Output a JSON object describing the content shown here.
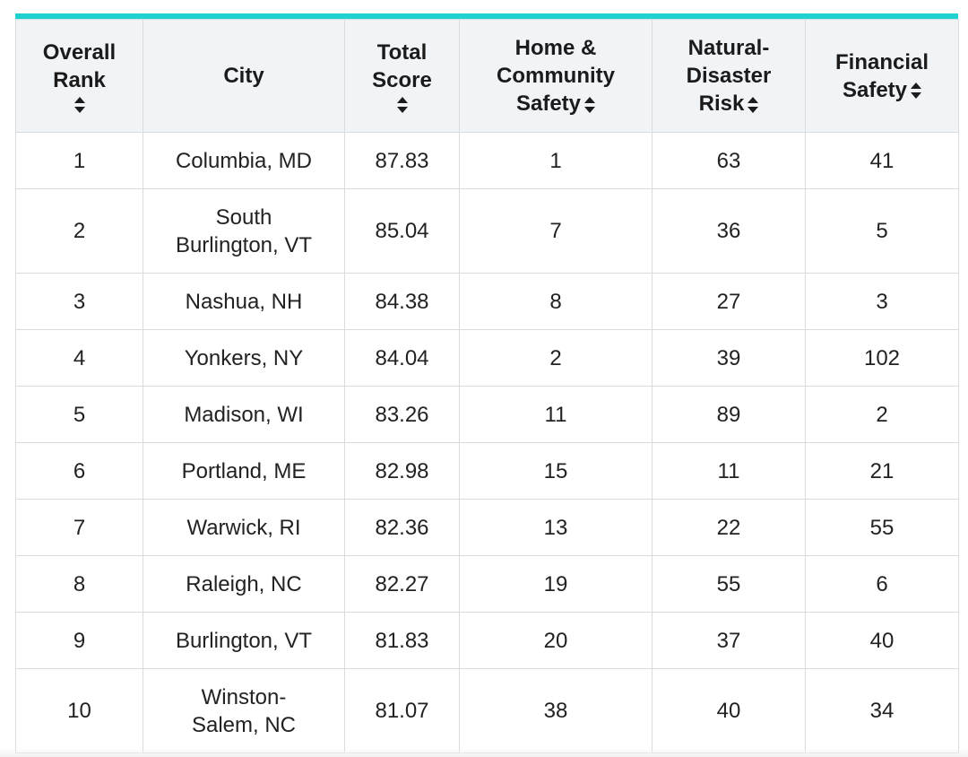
{
  "colors": {
    "accent": "#1fd1d1",
    "header_bg": "#f1f4f7",
    "border": "#d9dcdf"
  },
  "headers": {
    "rank": [
      "Overall",
      "Rank"
    ],
    "city": "City",
    "total": [
      "Total",
      "Score"
    ],
    "home": [
      "Home &",
      "Community",
      "Safety"
    ],
    "natural": [
      "Natural-",
      "Disaster",
      "Risk"
    ],
    "financial": [
      "Financial",
      "Safety"
    ]
  },
  "rows": [
    {
      "rank": "1",
      "city": "Columbia, MD",
      "total": "87.83",
      "home": "1",
      "natural": "63",
      "financial": "41"
    },
    {
      "rank": "2",
      "city": "South Burlington, VT",
      "total": "85.04",
      "home": "7",
      "natural": "36",
      "financial": "5"
    },
    {
      "rank": "3",
      "city": "Nashua, NH",
      "total": "84.38",
      "home": "8",
      "natural": "27",
      "financial": "3"
    },
    {
      "rank": "4",
      "city": "Yonkers, NY",
      "total": "84.04",
      "home": "2",
      "natural": "39",
      "financial": "102"
    },
    {
      "rank": "5",
      "city": "Madison, WI",
      "total": "83.26",
      "home": "11",
      "natural": "89",
      "financial": "2"
    },
    {
      "rank": "6",
      "city": "Portland, ME",
      "total": "82.98",
      "home": "15",
      "natural": "11",
      "financial": "21"
    },
    {
      "rank": "7",
      "city": "Warwick, RI",
      "total": "82.36",
      "home": "13",
      "natural": "22",
      "financial": "55"
    },
    {
      "rank": "8",
      "city": "Raleigh, NC",
      "total": "82.27",
      "home": "19",
      "natural": "55",
      "financial": "6"
    },
    {
      "rank": "9",
      "city": "Burlington, VT",
      "total": "81.83",
      "home": "20",
      "natural": "37",
      "financial": "40"
    },
    {
      "rank": "10",
      "city": "Winston-Salem, NC",
      "total": "81.07",
      "home": "38",
      "natural": "40",
      "financial": "34"
    }
  ]
}
